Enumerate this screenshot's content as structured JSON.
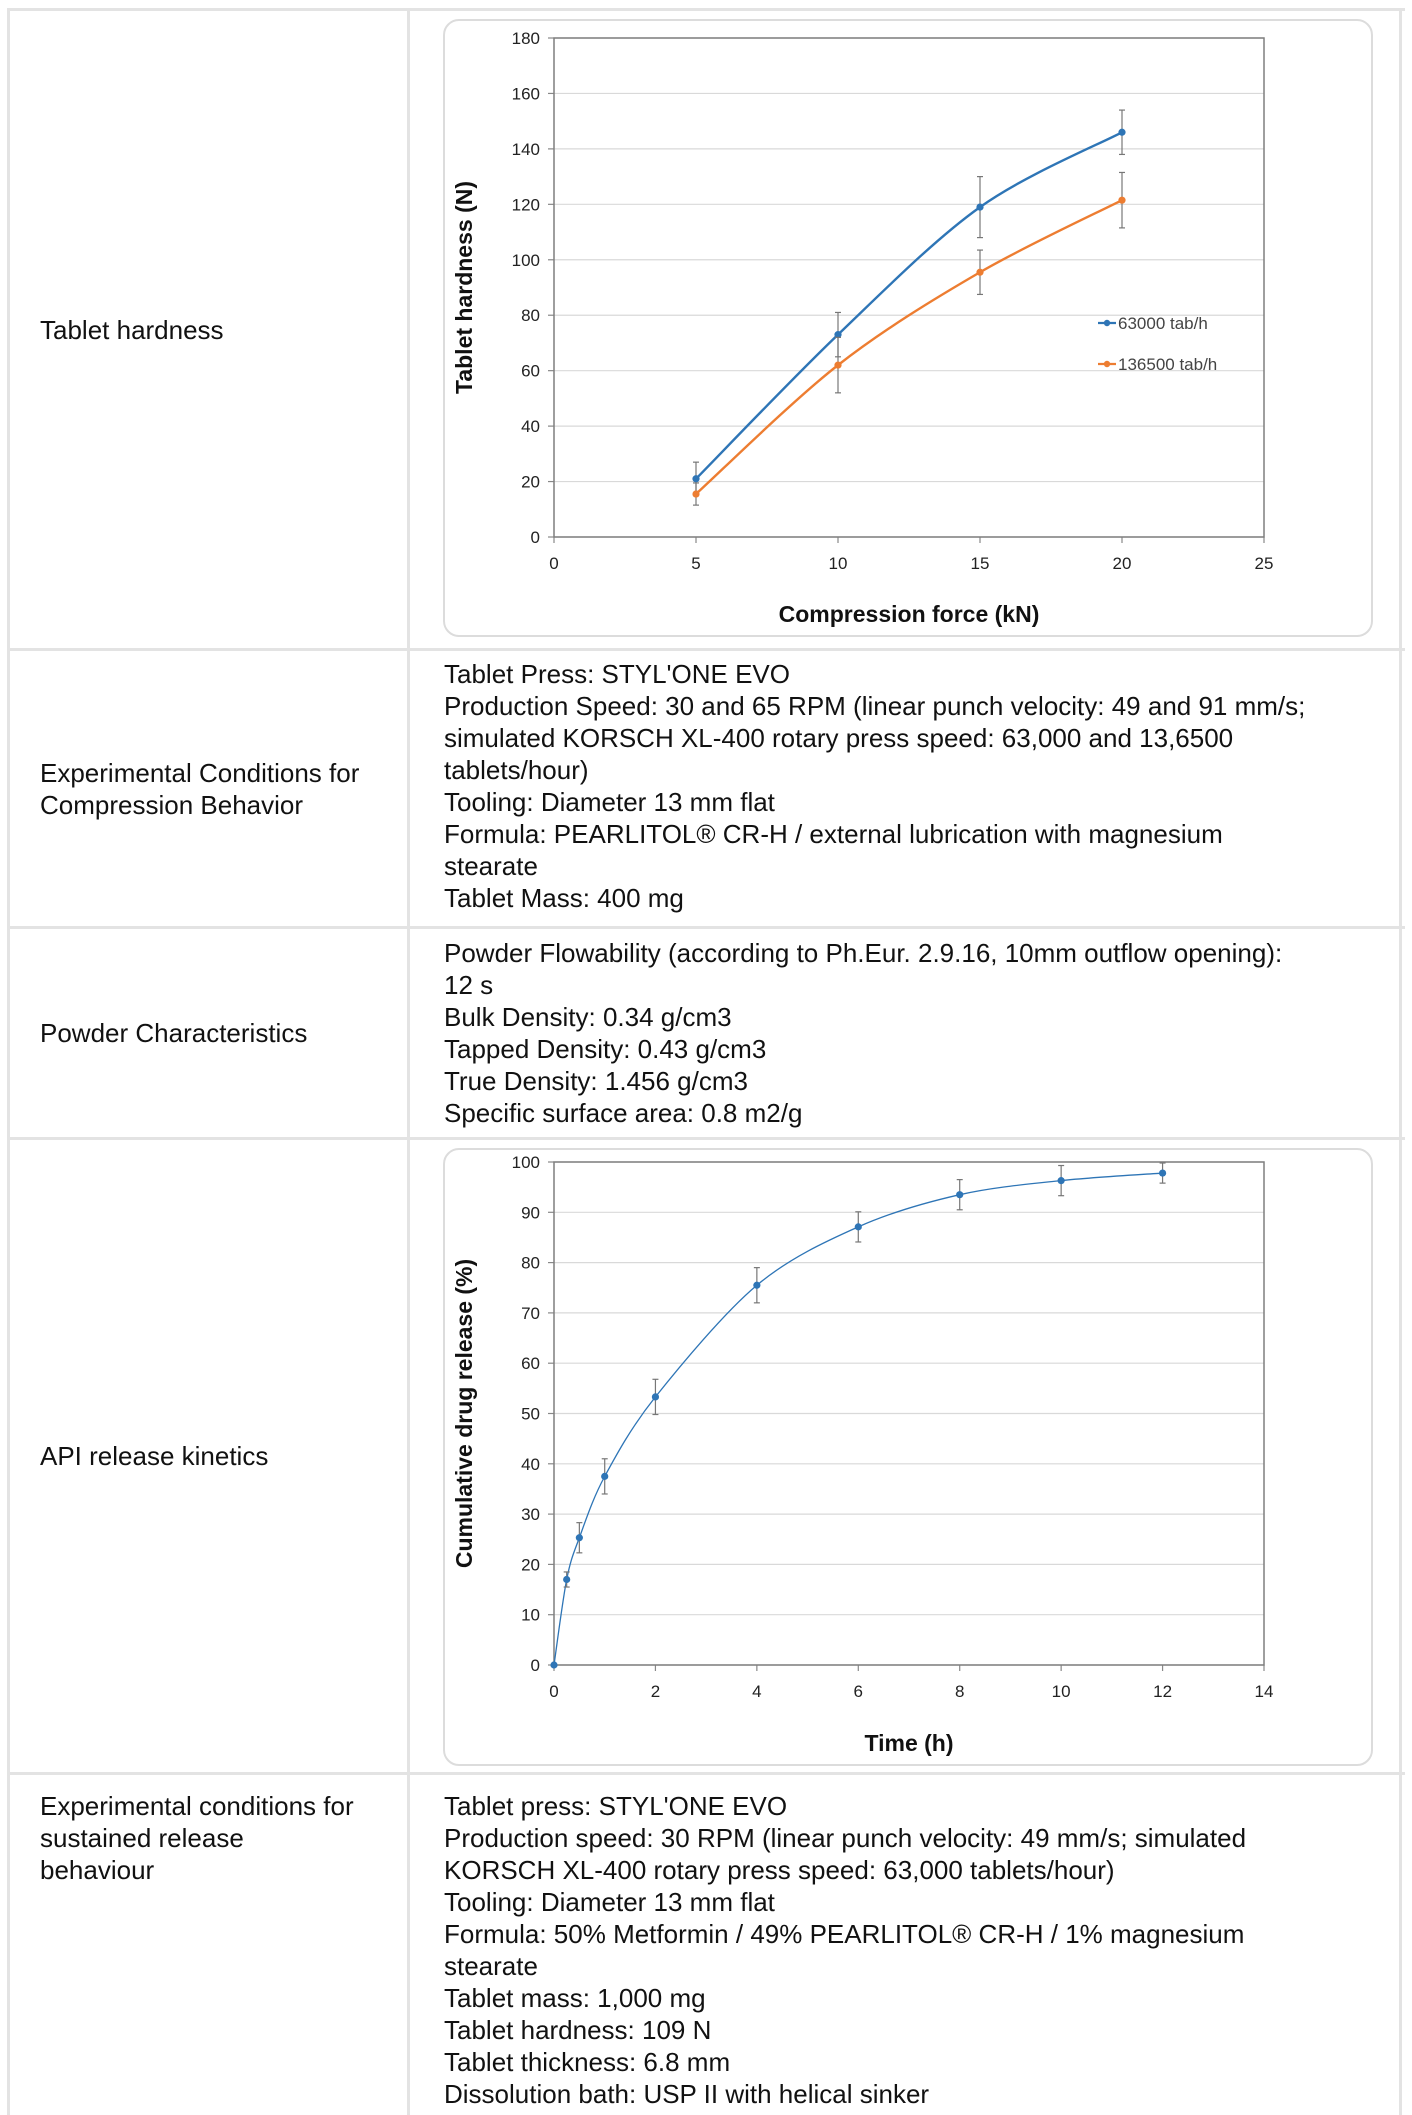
{
  "rows": {
    "hardness": {
      "label": "Tablet hardness"
    },
    "compression": {
      "label": "Experimental Conditions for Compression Behavior",
      "lines": [
        "Tablet Press: STYL'ONE EVO",
        "Production Speed: 30 and 65 RPM (linear punch velocity: 49 and 91 mm/s;",
        "simulated KORSCH XL-400 rotary press speed: 63,000 and 13,6500",
        "tablets/hour)",
        "Tooling: Diameter 13 mm flat",
        "Formula: PEARLITOL® CR-H / external lubrication with magnesium",
        "stearate",
        "Tablet Mass: 400 mg"
      ]
    },
    "powder": {
      "label": "Powder Characteristics",
      "lines": [
        "Powder Flowability (according to Ph.Eur. 2.9.16, 10mm outflow opening):",
        "12 s",
        "Bulk Density: 0.34 g/cm3",
        "Tapped Density: 0.43 g/cm3",
        "True Density: 1.456 g/cm3",
        "Specific surface area: 0.8 m2/g"
      ]
    },
    "release": {
      "label": "API release kinetics"
    },
    "sustained": {
      "label_lines": [
        "Experimental conditions for",
        "sustained release",
        "behaviour"
      ],
      "lines": [
        "Tablet press: STYL'ONE EVO",
        "Production speed: 30 RPM (linear punch velocity: 49 mm/s; simulated",
        "KORSCH XL-400 rotary press speed: 63,000 tablets/hour)",
        "Tooling: Diameter 13 mm flat",
        "Formula: 50% Metformin / 49% PEARLITOL® CR-H / 1% magnesium",
        "stearate",
        "Tablet mass: 1,000 mg",
        "Tablet hardness: 109 N",
        "Tablet thickness: 6.8 mm",
        "Dissolution bath: USP II with helical sinker"
      ]
    }
  },
  "chart_data": [
    {
      "type": "line",
      "xlabel": "Compression force (kN)",
      "ylabel": "Tablet hardness (N)",
      "xlim": [
        0,
        25
      ],
      "ylim": [
        0,
        180
      ],
      "xticks": [
        0,
        5,
        10,
        15,
        20,
        25
      ],
      "yticks": [
        0,
        20,
        40,
        60,
        80,
        100,
        120,
        140,
        160,
        180
      ],
      "grid": "horizontal",
      "legend_position": "right",
      "series": [
        {
          "name": "63000 tab/h",
          "color": "#2e75b6",
          "x": [
            5,
            10,
            15,
            20
          ],
          "y": [
            21,
            73,
            119,
            146
          ],
          "err": [
            6,
            8,
            11,
            8
          ]
        },
        {
          "name": "136500 tab/h",
          "color": "#ed7d31",
          "x": [
            5,
            10,
            15,
            20
          ],
          "y": [
            15.5,
            62,
            95.5,
            121.5
          ],
          "err": [
            4,
            10,
            8,
            10
          ]
        }
      ]
    },
    {
      "type": "line",
      "xlabel": "Time (h)",
      "ylabel": "Cumulative drug release (%)",
      "xlim": [
        0,
        14
      ],
      "ylim": [
        0,
        100
      ],
      "xticks": [
        0,
        2,
        4,
        6,
        8,
        10,
        12,
        14
      ],
      "yticks": [
        0,
        10,
        20,
        30,
        40,
        50,
        60,
        70,
        80,
        90,
        100
      ],
      "grid": "horizontal",
      "series": [
        {
          "color": "#2e75b6",
          "x": [
            0,
            0.25,
            0.5,
            1,
            2,
            4,
            6,
            8,
            10,
            12
          ],
          "y": [
            0,
            17,
            25.3,
            37.5,
            53.3,
            75.5,
            87.1,
            93.5,
            96.3,
            97.8
          ],
          "err": [
            0,
            1.5,
            3,
            3.5,
            3.5,
            3.5,
            3,
            3,
            3,
            2
          ]
        }
      ]
    }
  ]
}
